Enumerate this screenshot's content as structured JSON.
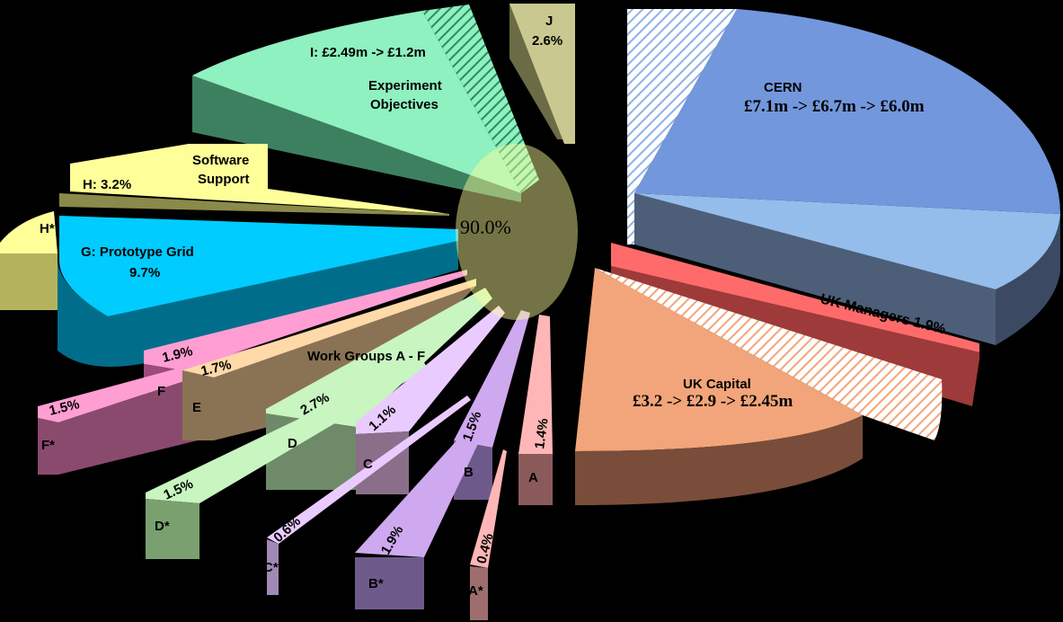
{
  "chart_data": {
    "type": "pie",
    "title": "",
    "center_label": "90.0%",
    "group_labels": {
      "work_groups": "Work Groups A - F",
      "experiment": "Experiment Objectives",
      "software": "Software Support"
    },
    "slices": [
      {
        "key": "cern",
        "title": "CERN",
        "label": "£7.1m -> £6.7m -> £6.0m",
        "color": "#7397dc"
      },
      {
        "key": "ukmanagers",
        "label": "UK Managers 1.9%",
        "value": 1.9,
        "color": "#ff6b6b"
      },
      {
        "key": "ukcapital",
        "title": "UK Capital",
        "label": "£3.2 -> £2.9 -> £2.45m",
        "color": "#f2a57a"
      },
      {
        "key": "a",
        "letter": "A",
        "value": 1.4,
        "value_label": "1.4%",
        "color": "#ffb6b6"
      },
      {
        "key": "astar",
        "letter": "A*",
        "value": 0.4,
        "value_label": "0.4%",
        "color": "#ffb6b6"
      },
      {
        "key": "b",
        "letter": "B",
        "value": 1.5,
        "value_label": "1.5%",
        "color": "#cfa9ef"
      },
      {
        "key": "bstar",
        "letter": "B*",
        "value": 1.9,
        "value_label": "1.9%",
        "color": "#cfa9ef"
      },
      {
        "key": "c",
        "letter": "C",
        "value": 1.1,
        "value_label": "1.1%",
        "color": "#eacbff"
      },
      {
        "key": "cstar",
        "letter": "C*",
        "value": 0.6,
        "value_label": "0.6%",
        "color": "#eacbff"
      },
      {
        "key": "d",
        "letter": "D",
        "value": 2.7,
        "value_label": "2.7%",
        "color": "#c8f5c0"
      },
      {
        "key": "dstar",
        "letter": "D*",
        "value": 1.5,
        "value_label": "1.5%",
        "color": "#c8f5c0"
      },
      {
        "key": "e",
        "letter": "E",
        "value": 1.7,
        "value_label": "1.7%",
        "color": "#ffd9a8"
      },
      {
        "key": "f",
        "letter": "F",
        "value": 1.9,
        "value_label": "1.9%",
        "color": "#ff9ed2"
      },
      {
        "key": "fstar",
        "letter": "F*",
        "value": 1.5,
        "value_label": "1.5%",
        "color": "#ff9ed2"
      },
      {
        "key": "g",
        "label": "G: Prototype Grid",
        "value": 9.7,
        "value_label": "9.7%",
        "color": "#00ccff"
      },
      {
        "key": "h",
        "label": "H: 3.2%",
        "value": 3.2,
        "color": "#ffff99"
      },
      {
        "key": "hstar",
        "letter": "H*",
        "color": "#ffff99"
      },
      {
        "key": "i",
        "label": "I:  £2.49m -> £1.2m",
        "color": "#8ff0c0"
      },
      {
        "key": "j",
        "letter": "J",
        "value": 2.6,
        "value_label": "2.6%",
        "color": "#c8c890"
      }
    ]
  }
}
